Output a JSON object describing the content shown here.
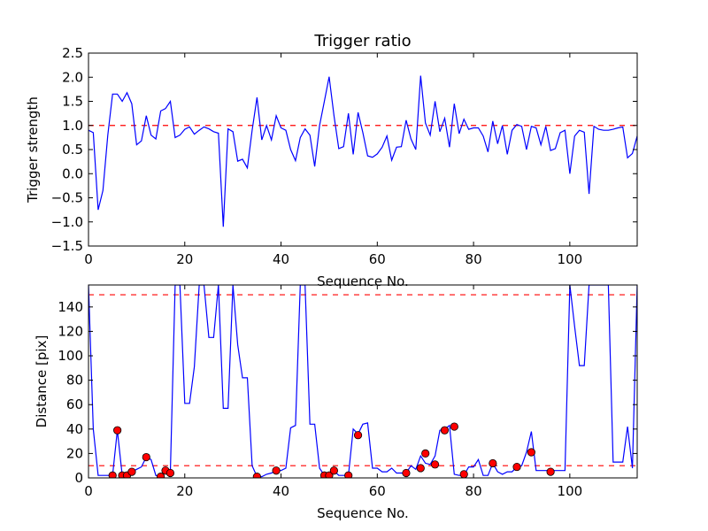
{
  "chart_data": [
    {
      "type": "line",
      "title": "Trigger ratio",
      "xlabel": "Sequence No.",
      "ylabel": "Trigger strength",
      "xlim": [
        0,
        114
      ],
      "ylim": [
        -1.5,
        2.5
      ],
      "xticks": [
        "0",
        "20",
        "40",
        "60",
        "80",
        "100"
      ],
      "yticks": [
        "−1.5",
        "−1.0",
        "−0.5",
        "0.0",
        "0.5",
        "1.0",
        "1.5",
        "2.0",
        "2.5"
      ],
      "grid": false,
      "threshold": {
        "value": 1.0,
        "color": "#ff0000",
        "style": "dashed"
      },
      "series": [
        {
          "color": "#0000ff",
          "x": [
            0,
            1,
            2,
            3,
            4,
            5,
            6,
            7,
            8,
            9,
            10,
            11,
            12,
            13,
            14,
            15,
            16,
            17,
            18,
            19,
            20,
            21,
            22,
            23,
            24,
            25,
            26,
            27,
            28,
            29,
            30,
            31,
            32,
            33,
            34,
            35,
            36,
            37,
            38,
            39,
            40,
            41,
            42,
            43,
            44,
            45,
            46,
            47,
            48,
            49,
            50,
            51,
            52,
            53,
            54,
            55,
            56,
            57,
            58,
            59,
            60,
            61,
            62,
            63,
            64,
            65,
            66,
            67,
            68,
            69,
            70,
            71,
            72,
            73,
            74,
            75,
            76,
            77,
            78,
            79,
            80,
            81,
            82,
            83,
            84,
            85,
            86,
            87,
            88,
            89,
            90,
            91,
            92,
            93,
            94,
            95,
            96,
            97,
            98,
            99,
            100,
            101,
            102,
            103,
            104,
            105,
            106,
            107,
            108,
            109,
            110,
            111,
            112,
            113,
            114
          ],
          "y": [
            0.9,
            0.85,
            -0.75,
            -0.35,
            0.8,
            1.65,
            1.65,
            1.5,
            1.68,
            1.45,
            0.6,
            0.68,
            1.2,
            0.8,
            0.72,
            1.3,
            1.35,
            1.5,
            0.75,
            0.8,
            0.92,
            0.97,
            0.82,
            0.9,
            0.97,
            0.93,
            0.87,
            0.84,
            -1.1,
            0.93,
            0.87,
            0.26,
            0.3,
            0.12,
            0.9,
            1.58,
            0.7,
            1.0,
            0.7,
            1.2,
            0.95,
            0.9,
            0.5,
            0.27,
            0.75,
            0.93,
            0.8,
            0.15,
            1.0,
            1.5,
            2.01,
            1.2,
            0.52,
            0.56,
            1.25,
            0.4,
            1.27,
            0.85,
            0.37,
            0.34,
            0.41,
            0.55,
            0.78,
            0.28,
            0.55,
            0.56,
            1.11,
            0.72,
            0.5,
            2.03,
            1.05,
            0.8,
            1.5,
            0.87,
            1.15,
            0.55,
            1.45,
            0.83,
            1.13,
            0.92,
            0.95,
            0.95,
            0.78,
            0.45,
            1.09,
            0.62,
            1.0,
            0.4,
            0.9,
            1.02,
            0.98,
            0.5,
            0.98,
            0.95,
            0.6,
            0.98,
            0.48,
            0.52,
            0.85,
            0.9,
            0.0,
            0.78,
            0.9,
            0.86,
            -0.42,
            0.98,
            0.92,
            0.9,
            0.9,
            0.92,
            0.95,
            0.97,
            0.33,
            0.42,
            0.78
          ]
        }
      ]
    },
    {
      "type": "line",
      "title": "",
      "xlabel": "Sequence No.",
      "ylabel": "Distance [pix]",
      "xlim": [
        0,
        114
      ],
      "ylim": [
        0,
        158
      ],
      "xticks": [
        "0",
        "20",
        "40",
        "60",
        "80",
        "100"
      ],
      "yticks": [
        "0",
        "20",
        "40",
        "60",
        "80",
        "100",
        "120",
        "140"
      ],
      "grid": false,
      "thresholds": [
        {
          "value": 150,
          "color": "#ff0000",
          "style": "dashed"
        },
        {
          "value": 10,
          "color": "#ff0000",
          "style": "dashed"
        }
      ],
      "series": [
        {
          "color": "#0000ff",
          "x": [
            0,
            1,
            2,
            3,
            4,
            5,
            6,
            7,
            8,
            9,
            10,
            11,
            12,
            13,
            14,
            15,
            16,
            17,
            18,
            19,
            20,
            21,
            22,
            23,
            24,
            25,
            26,
            27,
            28,
            29,
            30,
            31,
            32,
            33,
            34,
            35,
            36,
            37,
            38,
            39,
            40,
            41,
            42,
            43,
            44,
            45,
            46,
            47,
            48,
            49,
            50,
            51,
            52,
            53,
            54,
            55,
            56,
            57,
            58,
            59,
            60,
            61,
            62,
            63,
            64,
            65,
            66,
            67,
            68,
            69,
            70,
            71,
            72,
            73,
            74,
            75,
            76,
            77,
            78,
            79,
            80,
            81,
            82,
            83,
            84,
            85,
            86,
            87,
            88,
            89,
            90,
            91,
            92,
            93,
            94,
            95,
            96,
            97,
            98,
            99,
            100,
            101,
            102,
            103,
            104,
            105,
            106,
            107,
            108,
            109,
            110,
            111,
            112,
            113,
            114
          ],
          "y": [
            158,
            40,
            2,
            2,
            2,
            2,
            39,
            2,
            2,
            5,
            7,
            9,
            17,
            15,
            2,
            1,
            6,
            5,
            158,
            158,
            61,
            61,
            91,
            158,
            158,
            115,
            115,
            158,
            57,
            57,
            158,
            109,
            82,
            82,
            10,
            1,
            1,
            3,
            4,
            6,
            6,
            8,
            41,
            43,
            158,
            158,
            44,
            44,
            8,
            2,
            2,
            6,
            2,
            2,
            2,
            40,
            36,
            44,
            45,
            8,
            8,
            5,
            5,
            8,
            4,
            4,
            4,
            10,
            7,
            18,
            12,
            11,
            18,
            39,
            40,
            43,
            3,
            2,
            2,
            9,
            9,
            15,
            2,
            2,
            12,
            5,
            3,
            5,
            5,
            9,
            10,
            21,
            38,
            6,
            6,
            6,
            6,
            6,
            6,
            6,
            158,
            124,
            92,
            92,
            158,
            158,
            158,
            158,
            158,
            13,
            13,
            13,
            42,
            8,
            158
          ]
        },
        {
          "type": "scatter",
          "color": "#ff0000",
          "x": [
            5,
            6,
            7,
            8,
            9,
            12,
            15,
            16,
            17,
            35,
            39,
            49,
            50,
            51,
            54,
            56,
            66,
            69,
            70,
            72,
            74,
            76,
            78,
            84,
            89,
            92,
            96
          ],
          "y": [
            2,
            39,
            2,
            2,
            5,
            17,
            1,
            6,
            4,
            1,
            6,
            2,
            2,
            6,
            2,
            35,
            4,
            8,
            20,
            11,
            39,
            42,
            3,
            12,
            9,
            21,
            5
          ]
        }
      ]
    }
  ]
}
